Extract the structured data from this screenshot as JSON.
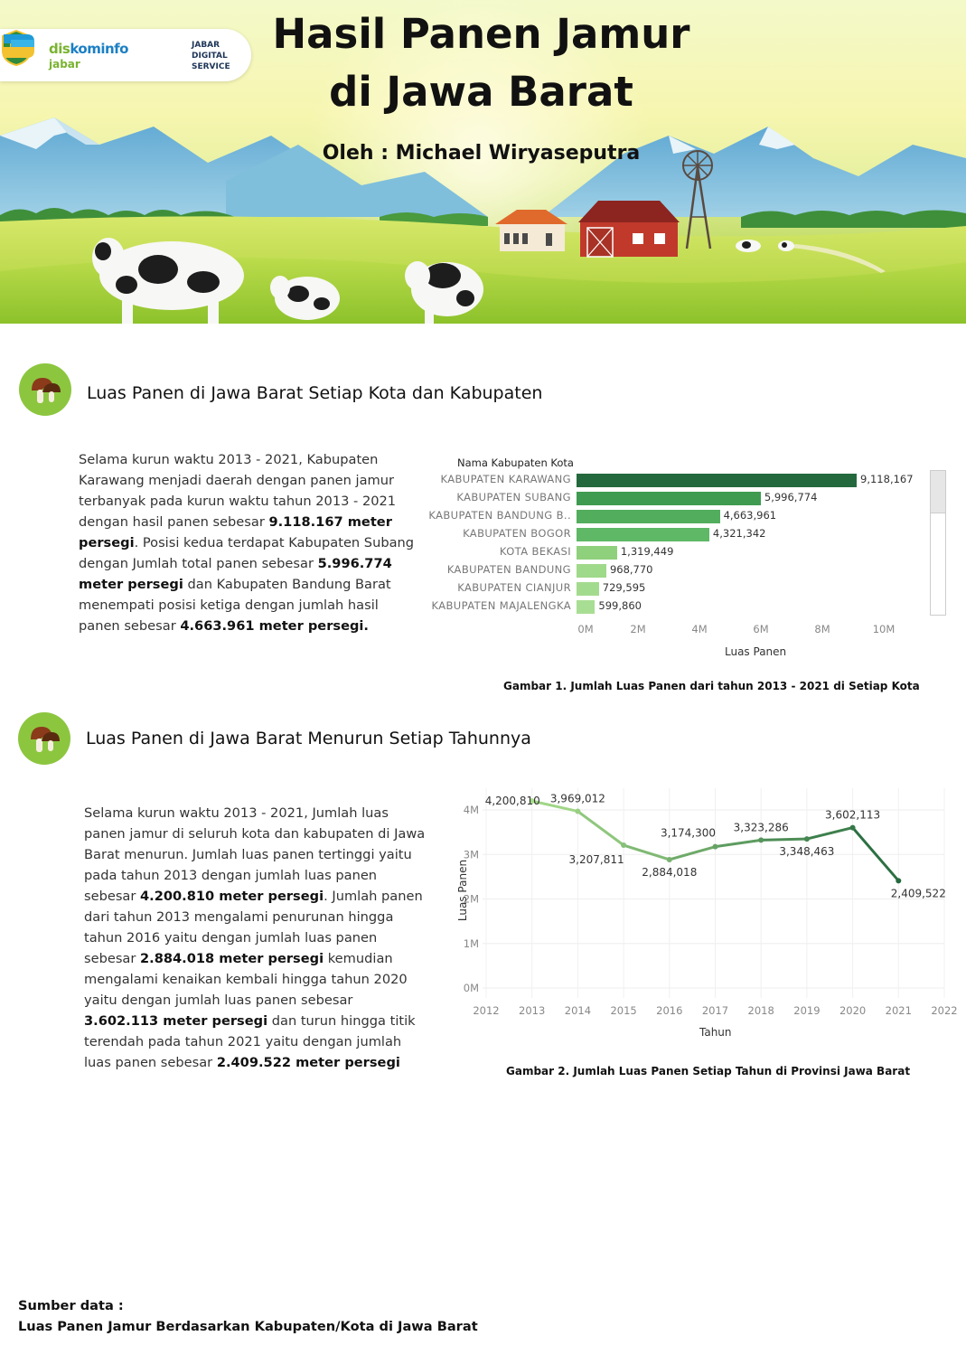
{
  "header": {
    "title_line1": "Hasil Panen Jamur",
    "title_line2": "di Jawa Barat",
    "author": "Oleh : Michael Wiryaseputra",
    "logos": {
      "diskominfo_dis": "dis",
      "diskominfo_rest": "kominfo",
      "diskominfo_region": "jabar",
      "jds_line1": "JABAR",
      "jds_line2": "DIGITAL",
      "jds_line3": "SERVICE"
    }
  },
  "section1": {
    "title": "Luas Panen di Jawa Barat Setiap Kota dan Kabupaten",
    "icon": "mushroom-icon",
    "p1": "Selama kurun waktu 2013 - 2021,  Kabupaten Karawang menjadi daerah dengan panen jamur terbanyak pada kurun waktu tahun 2013 - 2021 dengan hasil panen sebesar ",
    "b1": "9.118.167 meter persegi",
    "p2": ". Posisi kedua terdapat Kabupaten Subang dengan Jumlah total panen sebesar ",
    "b2": "5.996.774 meter persegi",
    "p3": " dan Kabupaten Bandung Barat menempati posisi ketiga dengan jumlah hasil panen sebesar ",
    "b3": "4.663.961 meter persegi.",
    "caption": "Gambar 1. Jumlah Luas Panen dari tahun 2013 - 2021 di Setiap Kota"
  },
  "section2": {
    "title": "Luas Panen di Jawa Barat Menurun Setiap Tahunnya",
    "icon": "mushroom-icon",
    "p1": "Selama kurun waktu 2013 - 2021,  Jumlah luas panen jamur di seluruh kota dan kabupaten di Jawa Barat menurun. Jumlah luas panen tertinggi yaitu pada tahun 2013 dengan jumlah luas panen sebesar ",
    "b1": "4.200.810 meter persegi",
    "p2": ". Jumlah panen dari tahun 2013 mengalami penurunan hingga tahun 2016 yaitu dengan jumlah luas panen sebesar ",
    "b2": "2.884.018 meter persegi",
    "p3": " kemudian mengalami kenaikan kembali hingga tahun 2020 yaitu dengan jumlah luas panen sebesar ",
    "b3": "3.602.113 meter persegi",
    "p4": " dan turun hingga titik terendah pada tahun 2021 yaitu dengan jumlah luas panen sebesar ",
    "b4": "2.409.522 meter persegi",
    "caption": "Gambar 2. Jumlah Luas Panen Setiap Tahun di Provinsi Jawa Barat"
  },
  "source": {
    "label": "Sumber data :",
    "text": "Luas Panen Jamur Berdasarkan Kabupaten/Kota di Jawa Barat"
  },
  "chart_data": [
    {
      "type": "bar",
      "orientation": "horizontal",
      "category_header": "Nama Kabupaten Kota",
      "categories": [
        "KABUPATEN KARAWANG",
        "KABUPATEN SUBANG",
        "KABUPATEN BANDUNG B..",
        "KABUPATEN BOGOR",
        "KOTA BEKASI",
        "KABUPATEN BANDUNG",
        "KABUPATEN CIANJUR",
        "KABUPATEN MAJALENGKA"
      ],
      "values": [
        9118167,
        5996774,
        4663961,
        4321342,
        1319449,
        968770,
        729595,
        599860
      ],
      "value_labels": [
        "9,118,167",
        "5,996,774",
        "4,663,961",
        "4,321,342",
        "1,319,449",
        "968,770",
        "729,595",
        "599,860"
      ],
      "colors": [
        "#24693d",
        "#3f9b4f",
        "#52ad5c",
        "#5fb866",
        "#8fd07c",
        "#9fd98a",
        "#a3db8e",
        "#a8de93"
      ],
      "xlabel": "Luas Panen",
      "xlim": [
        0,
        10000000
      ],
      "x_ticks": [
        "0M",
        "2M",
        "4M",
        "6M",
        "8M",
        "10M"
      ],
      "grid": false
    },
    {
      "type": "line",
      "x": [
        2013,
        2014,
        2015,
        2016,
        2017,
        2018,
        2019,
        2020,
        2021
      ],
      "values": [
        4200810,
        3969012,
        3207811,
        2884018,
        3174300,
        3323286,
        3348463,
        3602113,
        2409522
      ],
      "value_labels": [
        "4,200,810",
        "3,969,012",
        "3,207,811",
        "2,884,018",
        "3,174,300",
        "3,323,286",
        "3,348,463",
        "3,602,113",
        "2,409,522"
      ],
      "xlabel": "Tahun",
      "ylabel": "Luas Panen",
      "xlim": [
        2012,
        2022
      ],
      "x_ticks": [
        "2012",
        "2013",
        "2014",
        "2015",
        "2016",
        "2017",
        "2018",
        "2019",
        "2020",
        "2021",
        "2022"
      ],
      "ylim": [
        0,
        4000000
      ],
      "y_ticks": [
        "0M",
        "1M",
        "2M",
        "3M",
        "4M"
      ],
      "color_gradient": [
        "#a8dd8c",
        "#24693d"
      ],
      "grid": true
    }
  ]
}
